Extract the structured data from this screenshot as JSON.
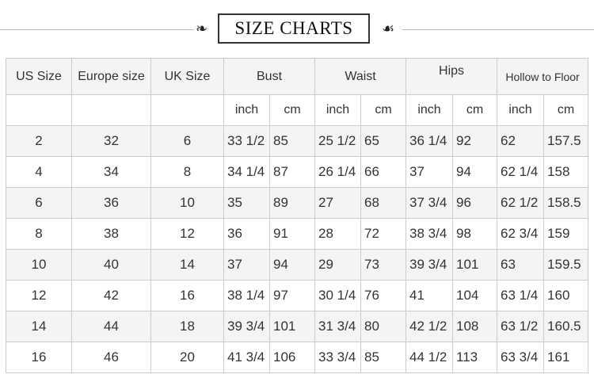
{
  "title": "SIZE CHARTS",
  "headers": {
    "us": "US Size",
    "europe": "Europe size",
    "uk": "UK Size",
    "bust": "Bust",
    "waist": "Waist",
    "hips": "Hips",
    "hollow": "Hollow to Floor",
    "inch": "inch",
    "cm": "cm"
  },
  "rows": [
    [
      "2",
      "32",
      "6",
      "33 1/2",
      "85",
      "25 1/2",
      "65",
      "36 1/4",
      "92",
      "62",
      "157.5"
    ],
    [
      "4",
      "34",
      "8",
      "34 1/4",
      "87",
      "26 1/4",
      "66",
      "37",
      "94",
      "62 1/4",
      "158"
    ],
    [
      "6",
      "36",
      "10",
      "35",
      "89",
      "27",
      "68",
      "37 3/4",
      "96",
      "62 1/2",
      "158.5"
    ],
    [
      "8",
      "38",
      "12",
      "36",
      "91",
      "28",
      "72",
      "38 3/4",
      "98",
      "62 3/4",
      "159"
    ],
    [
      "10",
      "40",
      "14",
      "37",
      "94",
      "29",
      "73",
      "39 3/4",
      "101",
      "63",
      "159.5"
    ],
    [
      "12",
      "42",
      "16",
      "38 1/4",
      "97",
      "30 1/4",
      "76",
      "41",
      "104",
      "63 1/4",
      "160"
    ],
    [
      "14",
      "44",
      "18",
      "39 3/4",
      "101",
      "31 3/4",
      "80",
      "42 1/2",
      "108",
      "63 1/2",
      "160.5"
    ],
    [
      "16",
      "46",
      "20",
      "41 3/4",
      "106",
      "33 3/4",
      "85",
      "44 1/2",
      "113",
      "63 3/4",
      "161"
    ]
  ]
}
